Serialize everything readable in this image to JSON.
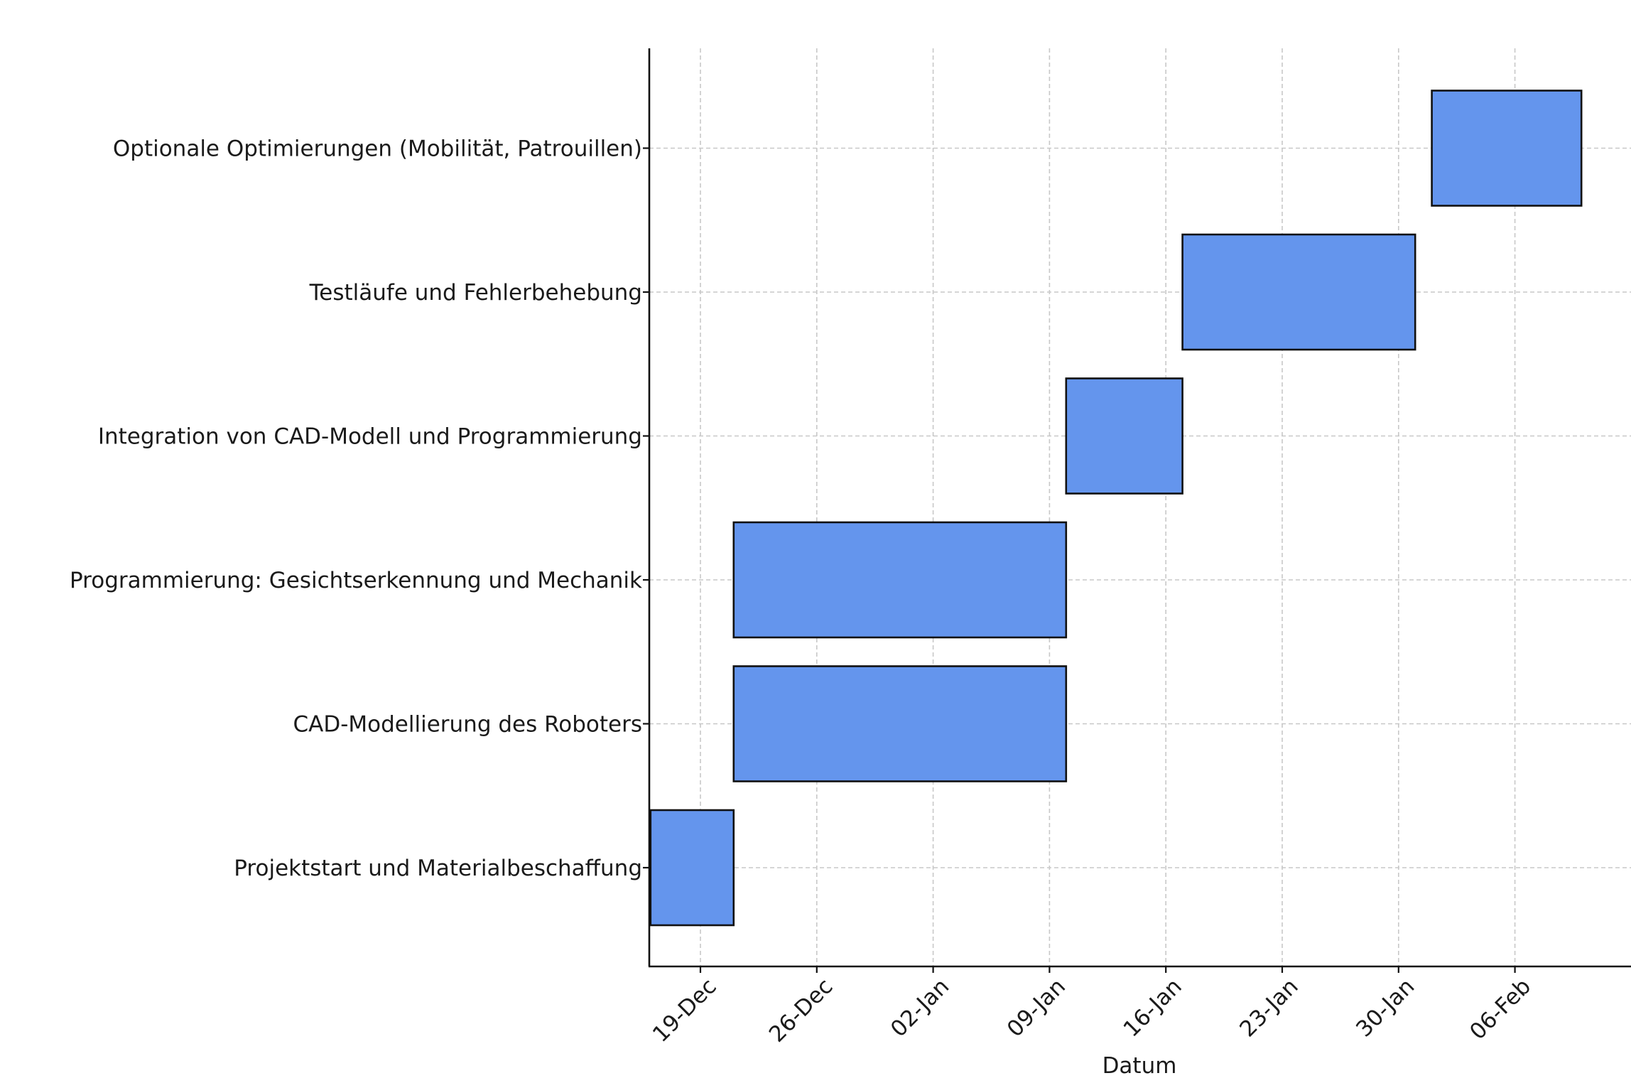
{
  "chart_data": {
    "type": "bar",
    "orientation": "horizontal-gantt",
    "title": "",
    "xlabel": "Datum",
    "ylabel": "",
    "grid": true,
    "bar_color": "#6495ED",
    "bar_edge_color": "#111111",
    "x_ticks": [
      "19-Dec",
      "26-Dec",
      "02-Jan",
      "09-Jan",
      "16-Jan",
      "23-Jan",
      "30-Jan",
      "06-Feb"
    ],
    "tasks": [
      {
        "label": "Projektstart und Materialbeschaffung",
        "start": "2023-12-16",
        "end": "2023-12-21"
      },
      {
        "label": "CAD-Modellierung des Roboters",
        "start": "2023-12-21",
        "end": "2024-01-10"
      },
      {
        "label": "Programmierung: Gesichtserkennung und Mechanik",
        "start": "2023-12-21",
        "end": "2024-01-10"
      },
      {
        "label": "Integration von CAD-Modell und Programmierung",
        "start": "2024-01-10",
        "end": "2024-01-17"
      },
      {
        "label": "Testläufe und Fehlerbehebung",
        "start": "2024-01-17",
        "end": "2024-01-31"
      },
      {
        "label": "Optionale Optimierungen (Mobilität, Patrouillen)",
        "start": "2024-02-01",
        "end": "2024-02-10"
      }
    ]
  }
}
